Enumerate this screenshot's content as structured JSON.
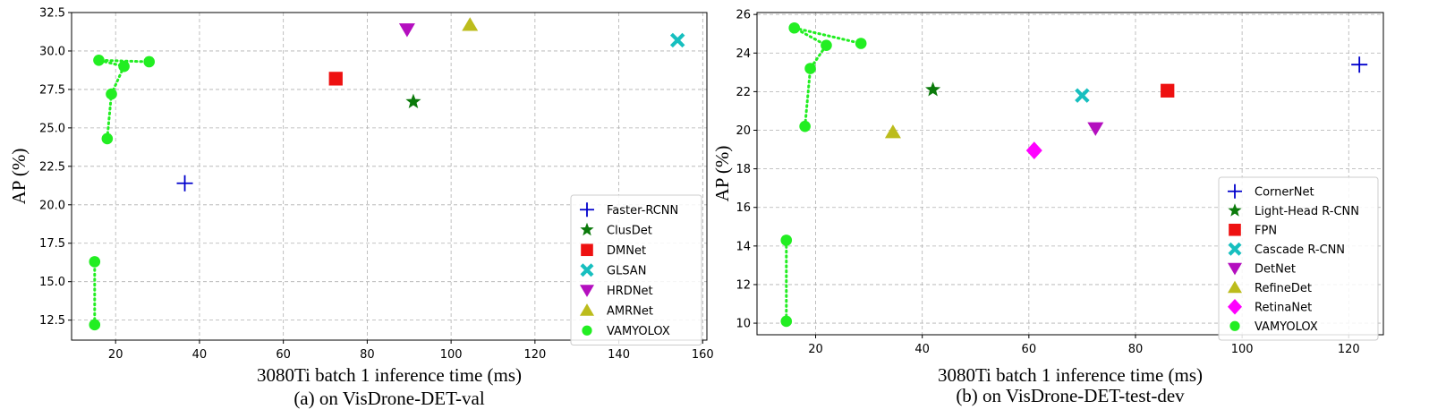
{
  "chart_data": [
    {
      "type": "scatter",
      "xlabel": "3080Ti batch 1 inference time (ms)",
      "ylabel": "AP (%)",
      "caption": "(a) on VisDrone-DET-val",
      "xlim": [
        9.5,
        161
      ],
      "ylim": [
        11.2,
        32.5
      ],
      "xticks": [
        20,
        40,
        60,
        80,
        100,
        120,
        140,
        160
      ],
      "yticks": [
        12.5,
        15.0,
        17.5,
        20.0,
        22.5,
        25.0,
        27.5,
        30.0,
        32.5
      ],
      "ytick_format": "1dp",
      "grid": true,
      "legend_position": "lower-right",
      "series": [
        {
          "name": "Faster-RCNN",
          "marker": "plus",
          "color": "#0000cc",
          "points": [
            [
              36.5,
              21.4
            ]
          ]
        },
        {
          "name": "ClusDet",
          "marker": "star",
          "color": "#0b7a0b",
          "points": [
            [
              91,
              26.7
            ]
          ]
        },
        {
          "name": "DMNet",
          "marker": "square",
          "color": "#ee1111",
          "points": [
            [
              72.5,
              28.2
            ]
          ]
        },
        {
          "name": "GLSAN",
          "marker": "x",
          "color": "#17bfbf",
          "points": [
            [
              154,
              30.7
            ]
          ]
        },
        {
          "name": "HRDNet",
          "marker": "triangle-down",
          "color": "#b40fbf",
          "points": [
            [
              89.5,
              31.4
            ]
          ]
        },
        {
          "name": "AMRNet",
          "marker": "triangle-up",
          "color": "#bcbc1c",
          "points": [
            [
              104.5,
              31.7
            ]
          ]
        },
        {
          "name": "VAMYOLOX",
          "marker": "circle",
          "color": "#22ee22",
          "line": "dotted",
          "points": [
            [
              15,
              12.2
            ],
            [
              15,
              16.3
            ]
          ],
          "line2": [
            [
              18,
              24.3
            ],
            [
              19,
              27.2
            ],
            [
              22,
              29.0
            ],
            [
              16,
              29.4
            ],
            [
              28,
              29.3
            ]
          ]
        }
      ]
    },
    {
      "type": "scatter",
      "xlabel": "3080Ti batch 1 inference time (ms)",
      "ylabel": "AP (%)",
      "caption": "(b) on VisDrone-DET-test-dev",
      "xlim": [
        9,
        126.5
      ],
      "ylim": [
        9.4,
        26.1
      ],
      "xticks": [
        20,
        40,
        60,
        80,
        100,
        120
      ],
      "yticks": [
        10,
        12,
        14,
        16,
        18,
        20,
        22,
        24,
        26
      ],
      "ytick_format": "int",
      "grid": true,
      "legend_position": "lower-right",
      "series": [
        {
          "name": "CornerNet",
          "marker": "plus",
          "color": "#0000cc",
          "points": [
            [
              122,
              23.4
            ]
          ]
        },
        {
          "name": "Light-Head R-CNN",
          "marker": "star",
          "color": "#0b7a0b",
          "points": [
            [
              42,
              22.1
            ]
          ]
        },
        {
          "name": "FPN",
          "marker": "square",
          "color": "#ee1111",
          "points": [
            [
              86,
              22.05
            ]
          ]
        },
        {
          "name": "Cascade R-CNN",
          "marker": "x",
          "color": "#17bfbf",
          "points": [
            [
              70,
              21.8
            ]
          ]
        },
        {
          "name": "DetNet",
          "marker": "triangle-down",
          "color": "#b40fbf",
          "points": [
            [
              72.5,
              20.1
            ]
          ]
        },
        {
          "name": "RefineDet",
          "marker": "triangle-up",
          "color": "#bcbc1c",
          "points": [
            [
              34.5,
              19.9
            ]
          ]
        },
        {
          "name": "RetinaNet",
          "marker": "diamond",
          "color": "#ff00ff",
          "points": [
            [
              61,
              18.95
            ]
          ]
        },
        {
          "name": "VAMYOLOX",
          "marker": "circle",
          "color": "#22ee22",
          "line": "dotted",
          "points": [
            [
              14.5,
              10.1
            ],
            [
              14.5,
              14.3
            ]
          ],
          "line2": [
            [
              18,
              20.2
            ],
            [
              19,
              23.2
            ],
            [
              22,
              24.4
            ],
            [
              16,
              25.3
            ],
            [
              28.5,
              24.5
            ]
          ]
        }
      ]
    }
  ]
}
